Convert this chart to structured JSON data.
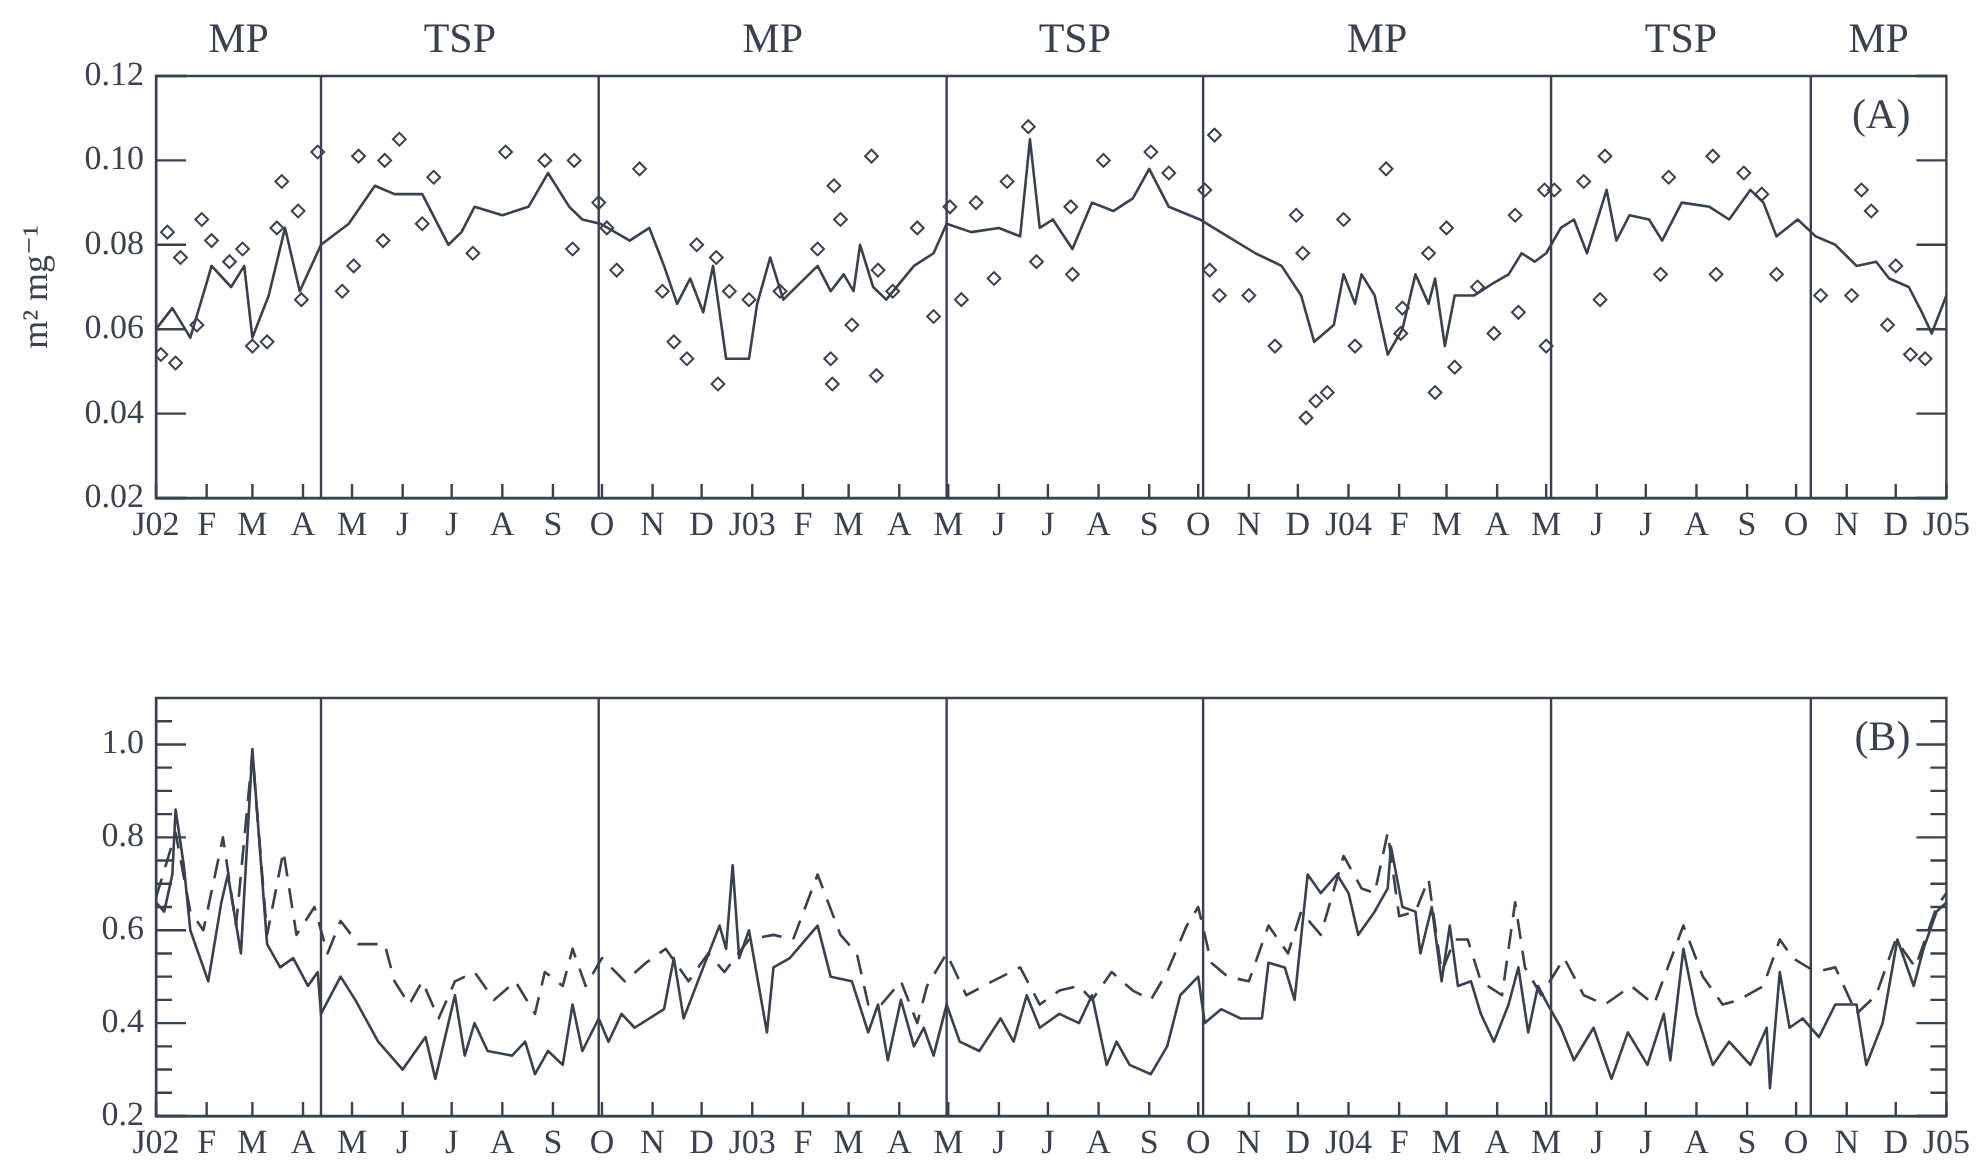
{
  "chart_data": [
    {
      "type": "line",
      "ylabel": "m² mg⁻¹",
      "annotations": [
        "(A)",
        "MP",
        "TSP",
        "MP",
        "TSP",
        "MP",
        "TSP",
        "MP"
      ],
      "xlim": [
        "2002-01-01",
        "2005-01-01"
      ],
      "xticks": [
        {
          "value": "2002-01",
          "label": "J02"
        },
        {
          "value": "2002-02",
          "label": "F"
        },
        {
          "value": "2002-03",
          "label": "M"
        },
        {
          "value": "2002-04",
          "label": "A"
        },
        {
          "value": "2002-05",
          "label": "M"
        },
        {
          "value": "2002-06",
          "label": "J"
        },
        {
          "value": "2002-07",
          "label": "J"
        },
        {
          "value": "2002-08",
          "label": "A"
        },
        {
          "value": "2002-09",
          "label": "S"
        },
        {
          "value": "2002-10",
          "label": "O"
        },
        {
          "value": "2002-11",
          "label": "N"
        },
        {
          "value": "2002-12",
          "label": "D"
        },
        {
          "value": "2003-01",
          "label": "J03"
        },
        {
          "value": "2003-02",
          "label": "F"
        },
        {
          "value": "2003-03",
          "label": "M"
        },
        {
          "value": "2003-04",
          "label": "A"
        },
        {
          "value": "2003-05",
          "label": "M"
        },
        {
          "value": "2003-06",
          "label": "J"
        },
        {
          "value": "2003-07",
          "label": "J"
        },
        {
          "value": "2003-08",
          "label": "A"
        },
        {
          "value": "2003-09",
          "label": "S"
        },
        {
          "value": "2003-10",
          "label": "O"
        },
        {
          "value": "2003-11",
          "label": "N"
        },
        {
          "value": "2003-12",
          "label": "D"
        },
        {
          "value": "2004-01",
          "label": "J04"
        },
        {
          "value": "2004-02",
          "label": "F"
        },
        {
          "value": "2004-03",
          "label": "M"
        },
        {
          "value": "2004-04",
          "label": "A"
        },
        {
          "value": "2004-05",
          "label": "M"
        },
        {
          "value": "2004-06",
          "label": "J"
        },
        {
          "value": "2004-07",
          "label": "J"
        },
        {
          "value": "2004-08",
          "label": "A"
        },
        {
          "value": "2004-09",
          "label": "S"
        },
        {
          "value": "2004-10",
          "label": "O"
        },
        {
          "value": "2004-11",
          "label": "N"
        },
        {
          "value": "2004-12",
          "label": "D"
        },
        {
          "value": "2005-01",
          "label": "J05"
        }
      ],
      "ylim": [
        0.02,
        0.12
      ],
      "yticks": [
        0.02,
        0.04,
        0.06,
        0.08,
        {
          "value": 0.1,
          "label": "0.10"
        },
        0.12
      ],
      "ref_lines": [
        {
          "axis": "x",
          "value": "2002-04-12"
        },
        {
          "axis": "x",
          "value": "2002-09-29"
        },
        {
          "axis": "x",
          "value": "2003-04-30"
        },
        {
          "axis": "x",
          "value": "2003-10-04"
        },
        {
          "axis": "x",
          "value": "2004-05-04"
        },
        {
          "axis": "x",
          "value": "2004-10-10"
        }
      ],
      "series": [
        {
          "type": "scatter",
          "marker": "diamond",
          "color": "#3a404e",
          "x": [
            "2002-01-04",
            "2002-01-08",
            "2002-01-13",
            "2002-01-16",
            "2002-01-26",
            "2002-01-29",
            "2002-02-04",
            "2002-02-15",
            "2002-02-23",
            "2002-03-01",
            "2002-03-10",
            "2002-03-16",
            "2002-03-19",
            "2002-03-29",
            "2002-03-31",
            "2002-04-10",
            "2002-04-25",
            "2002-05-02",
            "2002-05-05",
            "2002-05-20",
            "2002-05-21",
            "2002-05-30",
            "2002-06-13",
            "2002-06-20",
            "2002-07-14",
            "2002-08-03",
            "2002-08-27",
            "2002-09-13",
            "2002-09-14",
            "2002-09-29",
            "2002-10-04",
            "2002-10-10",
            "2002-10-24",
            "2002-11-07",
            "2002-11-14",
            "2002-11-22",
            "2002-11-28",
            "2002-12-10",
            "2002-12-11",
            "2002-12-18",
            "2002-12-30",
            "2003-01-18",
            "2003-02-10",
            "2003-02-18",
            "2003-02-19",
            "2003-02-20",
            "2003-02-24",
            "2003-03-03",
            "2003-03-15",
            "2003-03-18",
            "2003-03-19",
            "2003-03-28",
            "2003-04-12",
            "2003-04-22",
            "2003-05-02",
            "2003-05-09",
            "2003-05-18",
            "2003-05-29",
            "2003-06-06",
            "2003-06-19",
            "2003-06-24",
            "2003-07-15",
            "2003-07-16",
            "2003-08-04",
            "2003-09-02",
            "2003-09-13",
            "2003-10-05",
            "2003-10-08",
            "2003-10-11",
            "2003-10-14",
            "2003-11-01",
            "2003-11-17",
            "2003-11-30",
            "2003-12-04",
            "2003-12-06",
            "2003-12-12",
            "2003-12-19",
            "2003-12-29",
            "2004-01-05",
            "2004-01-24",
            "2004-02-02",
            "2004-02-03",
            "2004-02-19",
            "2004-02-23",
            "2004-03-01",
            "2004-03-06",
            "2004-03-20",
            "2004-03-30",
            "2004-04-12",
            "2004-04-14",
            "2004-04-30",
            "2004-05-01",
            "2004-05-06",
            "2004-05-24",
            "2004-06-03",
            "2004-06-06",
            "2004-07-10",
            "2004-07-15",
            "2004-08-11",
            "2004-08-13",
            "2004-08-30",
            "2004-09-10",
            "2004-09-19",
            "2004-10-16",
            "2004-11-04",
            "2004-11-10",
            "2004-11-16",
            "2004-11-26",
            "2004-12-01",
            "2004-12-10",
            "2004-12-19"
          ],
          "values": [
            0.054,
            0.083,
            0.052,
            0.077,
            0.061,
            0.086,
            0.081,
            0.076,
            0.079,
            0.056,
            0.057,
            0.084,
            0.095,
            0.088,
            0.067,
            0.102,
            0.069,
            0.075,
            0.101,
            0.081,
            0.1,
            0.105,
            0.085,
            0.096,
            0.078,
            0.102,
            0.1,
            0.079,
            0.1,
            0.09,
            0.084,
            0.074,
            0.098,
            0.069,
            0.057,
            0.053,
            0.08,
            0.077,
            0.047,
            0.069,
            0.067,
            0.069,
            0.079,
            0.053,
            0.047,
            0.094,
            0.086,
            0.061,
            0.101,
            0.049,
            0.074,
            0.069,
            0.084,
            0.063,
            0.089,
            0.067,
            0.09,
            0.072,
            0.095,
            0.108,
            0.076,
            0.089,
            0.073,
            0.1,
            0.102,
            0.097,
            0.093,
            0.074,
            0.106,
            0.068,
            0.068,
            0.056,
            0.087,
            0.078,
            0.039,
            0.043,
            0.045,
            0.086,
            0.056,
            0.098,
            0.059,
            0.065,
            0.078,
            0.045,
            0.084,
            0.051,
            0.07,
            0.059,
            0.087,
            0.064,
            0.093,
            0.056,
            0.093,
            0.095,
            0.067,
            0.101,
            0.073,
            0.096,
            0.101,
            0.073,
            0.097,
            0.092,
            0.073,
            0.068,
            0.068,
            0.093,
            0.088,
            0.061,
            0.075,
            0.054,
            0.053
          ]
        },
        {
          "marker": "none",
          "color": "#3a404e",
          "x": [
            "2002-01-01",
            "2002-01-11",
            "2002-01-22",
            "2002-02-01",
            "2002-02-04",
            "2002-02-16",
            "2002-02-24",
            "2002-03-01",
            "2002-03-11",
            "2002-03-21",
            "2002-03-30",
            "2002-04-12",
            "2002-04-29",
            "2002-05-15",
            "2002-05-27",
            "2002-06-13",
            "2002-06-29",
            "2002-07-07",
            "2002-07-15",
            "2002-08-01",
            "2002-08-17",
            "2002-08-29",
            "2002-09-11",
            "2002-09-19",
            "2002-09-30",
            "2002-10-18",
            "2002-10-30",
            "2002-11-08",
            "2002-11-16",
            "2002-11-24",
            "2002-12-02",
            "2002-12-08",
            "2002-12-16",
            "2002-12-30",
            "2003-01-04",
            "2003-01-12",
            "2003-01-20",
            "2003-02-10",
            "2003-02-18",
            "2003-02-26",
            "2003-03-04",
            "2003-03-08",
            "2003-03-16",
            "2003-03-24",
            "2003-04-10",
            "2003-04-22",
            "2003-04-30",
            "2003-05-15",
            "2003-06-01",
            "2003-06-14",
            "2003-06-20",
            "2003-06-26",
            "2003-07-04",
            "2003-07-16",
            "2003-07-28",
            "2003-08-10",
            "2003-08-22",
            "2003-09-01",
            "2003-09-13",
            "2003-10-02",
            "2003-10-19",
            "2003-11-05",
            "2003-11-21",
            "2003-12-03",
            "2003-12-11",
            "2003-12-23",
            "2003-12-29",
            "2004-01-05",
            "2004-01-09",
            "2004-01-17",
            "2004-01-25",
            "2004-02-03",
            "2004-02-11",
            "2004-02-19",
            "2004-02-23",
            "2004-02-29",
            "2004-03-06",
            "2004-03-18",
            "2004-03-30",
            "2004-04-08",
            "2004-04-16",
            "2004-04-24",
            "2004-05-01",
            "2004-05-10",
            "2004-05-18",
            "2004-05-26",
            "2004-06-07",
            "2004-06-13",
            "2004-06-21",
            "2004-07-03",
            "2004-07-11",
            "2004-07-23",
            "2004-08-09",
            "2004-08-21",
            "2004-09-03",
            "2004-09-11",
            "2004-09-19",
            "2004-10-02",
            "2004-10-13",
            "2004-10-25",
            "2004-11-07",
            "2004-11-19",
            "2004-11-27",
            "2004-12-09",
            "2004-12-17",
            "2004-12-23",
            "2005-01-01"
          ],
          "values": [
            0.06,
            0.065,
            0.058,
            0.071,
            0.075,
            0.07,
            0.075,
            0.058,
            0.068,
            0.084,
            0.069,
            0.08,
            0.085,
            0.094,
            0.092,
            0.092,
            0.08,
            0.083,
            0.089,
            0.087,
            0.089,
            0.097,
            0.089,
            0.086,
            0.085,
            0.081,
            0.084,
            0.075,
            0.066,
            0.072,
            0.064,
            0.075,
            0.053,
            0.053,
            0.066,
            0.077,
            0.067,
            0.075,
            0.069,
            0.073,
            0.069,
            0.08,
            0.07,
            0.067,
            0.075,
            0.078,
            0.085,
            0.083,
            0.084,
            0.082,
            0.105,
            0.084,
            0.086,
            0.079,
            0.09,
            0.088,
            0.091,
            0.098,
            0.089,
            0.086,
            0.082,
            0.078,
            0.075,
            0.068,
            0.057,
            0.061,
            0.073,
            0.066,
            0.073,
            0.068,
            0.054,
            0.06,
            0.073,
            0.066,
            0.072,
            0.056,
            0.068,
            0.068,
            0.071,
            0.073,
            0.078,
            0.076,
            0.078,
            0.084,
            0.086,
            0.078,
            0.093,
            0.081,
            0.087,
            0.086,
            0.081,
            0.09,
            0.089,
            0.086,
            0.093,
            0.09,
            0.082,
            0.086,
            0.082,
            0.08,
            0.075,
            0.076,
            0.072,
            0.07,
            0.064,
            0.059,
            0.068
          ]
        }
      ]
    },
    {
      "type": "line",
      "annotations": [
        "(B)"
      ],
      "xlim": [
        "2002-01-01",
        "2005-01-01"
      ],
      "xticks": [
        {
          "value": "2002-01",
          "label": "J02"
        },
        {
          "value": "2002-02",
          "label": "F"
        },
        {
          "value": "2002-03",
          "label": "M"
        },
        {
          "value": "2002-04",
          "label": "A"
        },
        {
          "value": "2002-05",
          "label": "M"
        },
        {
          "value": "2002-06",
          "label": "J"
        },
        {
          "value": "2002-07",
          "label": "J"
        },
        {
          "value": "2002-08",
          "label": "A"
        },
        {
          "value": "2002-09",
          "label": "S"
        },
        {
          "value": "2002-10",
          "label": "O"
        },
        {
          "value": "2002-11",
          "label": "N"
        },
        {
          "value": "2002-12",
          "label": "D"
        },
        {
          "value": "2003-01",
          "label": "J03"
        },
        {
          "value": "2003-02",
          "label": "F"
        },
        {
          "value": "2003-03",
          "label": "M"
        },
        {
          "value": "2003-04",
          "label": "A"
        },
        {
          "value": "2003-05",
          "label": "M"
        },
        {
          "value": "2003-06",
          "label": "J"
        },
        {
          "value": "2003-07",
          "label": "J"
        },
        {
          "value": "2003-08",
          "label": "A"
        },
        {
          "value": "2003-09",
          "label": "S"
        },
        {
          "value": "2003-10",
          "label": "O"
        },
        {
          "value": "2003-11",
          "label": "N"
        },
        {
          "value": "2003-12",
          "label": "D"
        },
        {
          "value": "2004-01",
          "label": "J04"
        },
        {
          "value": "2004-02",
          "label": "F"
        },
        {
          "value": "2004-03",
          "label": "M"
        },
        {
          "value": "2004-04",
          "label": "A"
        },
        {
          "value": "2004-05",
          "label": "M"
        },
        {
          "value": "2004-06",
          "label": "J"
        },
        {
          "value": "2004-07",
          "label": "J"
        },
        {
          "value": "2004-08",
          "label": "A"
        },
        {
          "value": "2004-09",
          "label": "S"
        },
        {
          "value": "2004-10",
          "label": "O"
        },
        {
          "value": "2004-11",
          "label": "N"
        },
        {
          "value": "2004-12",
          "label": "D"
        },
        {
          "value": "2005-01",
          "label": "J05"
        }
      ],
      "ylim": [
        0.2,
        1.1
      ],
      "yticks": [
        0.2,
        {
          "value": 0.25,
          "label": null
        },
        {
          "value": 0.3,
          "label": null
        },
        {
          "value": 0.35,
          "label": null
        },
        0.4,
        {
          "value": 0.45,
          "label": null
        },
        {
          "value": 0.5,
          "label": null
        },
        {
          "value": 0.55,
          "label": null
        },
        0.6,
        {
          "value": 0.65,
          "label": null
        },
        {
          "value": 0.7,
          "label": null
        },
        {
          "value": 0.75,
          "label": null
        },
        0.8,
        {
          "value": 0.85,
          "label": null
        },
        {
          "value": 0.9,
          "label": null
        },
        {
          "value": 0.95,
          "label": null
        },
        {
          "value": 1,
          "label": "1.0"
        },
        {
          "value": 1.05,
          "label": null
        }
      ],
      "ref_lines": [
        {
          "axis": "x",
          "value": "2002-04-12"
        },
        {
          "axis": "x",
          "value": "2002-09-29"
        },
        {
          "axis": "x",
          "value": "2003-04-30"
        },
        {
          "axis": "x",
          "value": "2003-10-04"
        },
        {
          "axis": "x",
          "value": "2004-05-04"
        },
        {
          "axis": "x",
          "value": "2004-10-10"
        }
      ],
      "series": [
        {
          "color": "#3a404e",
          "line_style": "solid",
          "x": [
            "2002-01-01",
            "2002-01-06",
            "2002-01-11",
            "2002-01-13",
            "2002-01-18",
            "2002-01-22",
            "2002-02-02",
            "2002-02-10",
            "2002-02-14",
            "2002-02-22",
            "2002-03-01",
            "2002-03-10",
            "2002-03-18",
            "2002-03-26",
            "2002-04-04",
            "2002-04-10",
            "2002-04-12",
            "2002-04-24",
            "2002-05-03",
            "2002-05-17",
            "2002-06-01",
            "2002-06-15",
            "2002-06-21",
            "2002-07-03",
            "2002-07-09",
            "2002-07-15",
            "2002-07-23",
            "2002-08-07",
            "2002-08-15",
            "2002-08-21",
            "2002-08-29",
            "2002-09-07",
            "2002-09-13",
            "2002-09-19",
            "2002-09-29",
            "2002-10-05",
            "2002-10-13",
            "2002-10-21",
            "2002-11-08",
            "2002-11-14",
            "2002-11-20",
            "2002-12-02",
            "2002-12-12",
            "2002-12-16",
            "2002-12-20",
            "2002-12-24",
            "2002-12-30",
            "2003-01-10",
            "2003-01-14",
            "2003-01-24",
            "2003-02-10",
            "2003-02-18",
            "2003-03-03",
            "2003-03-13",
            "2003-03-19",
            "2003-03-25",
            "2003-04-02",
            "2003-04-10",
            "2003-04-16",
            "2003-04-22",
            "2003-04-30",
            "2003-05-08",
            "2003-05-20",
            "2003-06-02",
            "2003-06-10",
            "2003-06-18",
            "2003-06-26",
            "2003-07-08",
            "2003-07-20",
            "2003-07-28",
            "2003-08-06",
            "2003-08-12",
            "2003-08-20",
            "2003-09-02",
            "2003-09-12",
            "2003-09-20",
            "2003-10-01",
            "2003-10-05",
            "2003-10-15",
            "2003-10-27",
            "2003-11-09",
            "2003-11-13",
            "2003-11-23",
            "2003-11-29",
            "2003-12-07",
            "2003-12-15",
            "2003-12-25",
            "2004-01-01",
            "2004-01-07",
            "2004-01-17",
            "2004-01-25",
            "2004-01-27",
            "2004-02-03",
            "2004-02-11",
            "2004-02-14",
            "2004-02-21",
            "2004-02-27",
            "2004-03-03",
            "2004-03-08",
            "2004-03-16",
            "2004-03-22",
            "2004-03-30",
            "2004-04-08",
            "2004-04-14",
            "2004-04-20",
            "2004-04-26",
            "2004-05-02",
            "2004-05-10",
            "2004-05-18",
            "2004-05-30",
            "2004-06-10",
            "2004-06-20",
            "2004-07-02",
            "2004-07-12",
            "2004-07-16",
            "2004-07-24",
            "2004-08-01",
            "2004-08-11",
            "2004-08-21",
            "2004-09-03",
            "2004-09-13",
            "2004-09-15",
            "2004-09-21",
            "2004-09-27",
            "2004-10-05",
            "2004-10-15",
            "2004-10-25",
            "2004-11-07",
            "2004-11-13",
            "2004-11-23",
            "2004-12-02",
            "2004-12-12",
            "2004-12-18",
            "2004-12-26",
            "2005-01-01"
          ],
          "values": [
            0.66,
            0.64,
            0.72,
            0.86,
            0.74,
            0.6,
            0.49,
            0.66,
            0.72,
            0.55,
            0.99,
            0.57,
            0.52,
            0.54,
            0.48,
            0.51,
            0.42,
            0.5,
            0.45,
            0.36,
            0.3,
            0.37,
            0.28,
            0.46,
            0.33,
            0.4,
            0.34,
            0.33,
            0.36,
            0.29,
            0.34,
            0.31,
            0.44,
            0.34,
            0.41,
            0.36,
            0.42,
            0.39,
            0.43,
            0.54,
            0.41,
            0.52,
            0.61,
            0.56,
            0.74,
            0.54,
            0.6,
            0.38,
            0.52,
            0.54,
            0.61,
            0.5,
            0.49,
            0.38,
            0.44,
            0.32,
            0.45,
            0.35,
            0.39,
            0.33,
            0.44,
            0.36,
            0.34,
            0.41,
            0.36,
            0.46,
            0.39,
            0.42,
            0.4,
            0.46,
            0.31,
            0.36,
            0.31,
            0.29,
            0.35,
            0.46,
            0.5,
            0.4,
            0.43,
            0.41,
            0.41,
            0.53,
            0.52,
            0.45,
            0.72,
            0.68,
            0.72,
            0.68,
            0.59,
            0.64,
            0.69,
            0.78,
            0.65,
            0.64,
            0.55,
            0.65,
            0.49,
            0.61,
            0.48,
            0.49,
            0.42,
            0.36,
            0.44,
            0.52,
            0.38,
            0.48,
            0.44,
            0.39,
            0.32,
            0.39,
            0.28,
            0.38,
            0.31,
            0.42,
            0.32,
            0.56,
            0.42,
            0.31,
            0.36,
            0.31,
            0.39,
            0.26,
            0.51,
            0.39,
            0.41,
            0.37,
            0.44,
            0.44,
            0.31,
            0.4,
            0.58,
            0.48,
            0.56,
            0.64,
            0.66
          ]
        },
        {
          "color": "#3a404e",
          "line_style": "dashed",
          "x": [
            "2002-01-01",
            "2002-01-13",
            "2002-01-22",
            "2002-01-30",
            "2002-02-11",
            "2002-02-19",
            "2002-03-01",
            "2002-03-10",
            "2002-03-20",
            "2002-03-28",
            "2002-04-08",
            "2002-04-16",
            "2002-04-24",
            "2002-05-05",
            "2002-05-21",
            "2002-05-27",
            "2002-06-05",
            "2002-06-13",
            "2002-06-23",
            "2002-07-03",
            "2002-07-15",
            "2002-07-27",
            "2002-08-09",
            "2002-08-21",
            "2002-08-27",
            "2002-09-07",
            "2002-09-13",
            "2002-09-21",
            "2002-10-01",
            "2002-10-15",
            "2002-10-28",
            "2002-11-09",
            "2002-11-23",
            "2002-12-05",
            "2002-12-15",
            "2002-12-30",
            "2003-01-14",
            "2003-01-26",
            "2003-02-10",
            "2003-02-24",
            "2003-03-06",
            "2003-03-13",
            "2003-03-21",
            "2003-04-02",
            "2003-04-12",
            "2003-04-18",
            "2003-04-30",
            "2003-05-12",
            "2003-05-28",
            "2003-06-14",
            "2003-06-26",
            "2003-07-08",
            "2003-07-20",
            "2003-07-28",
            "2003-08-09",
            "2003-08-22",
            "2003-09-02",
            "2003-09-12",
            "2003-09-24",
            "2003-10-01",
            "2003-10-09",
            "2003-10-19",
            "2003-11-01",
            "2003-11-13",
            "2003-11-25",
            "2003-12-03",
            "2003-12-15",
            "2003-12-29",
            "2004-01-09",
            "2004-01-17",
            "2004-01-25",
            "2004-02-01",
            "2004-02-11",
            "2004-02-19",
            "2004-02-27",
            "2004-03-06",
            "2004-03-14",
            "2004-03-22",
            "2004-04-04",
            "2004-04-12",
            "2004-04-18",
            "2004-04-28",
            "2004-05-12",
            "2004-05-24",
            "2004-06-06",
            "2004-06-22",
            "2004-07-06",
            "2004-07-24",
            "2004-08-05",
            "2004-08-17",
            "2004-08-27",
            "2004-09-11",
            "2004-09-21",
            "2004-09-29",
            "2004-10-13",
            "2004-10-25",
            "2004-11-07",
            "2004-11-19",
            "2004-12-01",
            "2004-12-13",
            "2004-12-26",
            "2005-01-01"
          ],
          "values": [
            0.67,
            0.81,
            0.64,
            0.6,
            0.8,
            0.61,
            0.98,
            0.59,
            0.77,
            0.59,
            0.65,
            0.55,
            0.62,
            0.57,
            0.57,
            0.49,
            0.44,
            0.49,
            0.41,
            0.49,
            0.51,
            0.45,
            0.49,
            0.42,
            0.51,
            0.48,
            0.56,
            0.48,
            0.54,
            0.49,
            0.53,
            0.56,
            0.49,
            0.55,
            0.51,
            0.58,
            0.59,
            0.58,
            0.72,
            0.59,
            0.55,
            0.44,
            0.44,
            0.49,
            0.4,
            0.48,
            0.55,
            0.46,
            0.49,
            0.52,
            0.44,
            0.47,
            0.48,
            0.45,
            0.51,
            0.47,
            0.45,
            0.51,
            0.61,
            0.65,
            0.53,
            0.5,
            0.49,
            0.61,
            0.55,
            0.64,
            0.59,
            0.76,
            0.69,
            0.68,
            0.81,
            0.63,
            0.64,
            0.71,
            0.51,
            0.58,
            0.58,
            0.49,
            0.46,
            0.66,
            0.52,
            0.46,
            0.54,
            0.46,
            0.44,
            0.48,
            0.44,
            0.61,
            0.5,
            0.44,
            0.45,
            0.48,
            0.58,
            0.54,
            0.51,
            0.52,
            0.42,
            0.46,
            0.58,
            0.52,
            0.65,
            0.68
          ]
        }
      ]
    }
  ]
}
